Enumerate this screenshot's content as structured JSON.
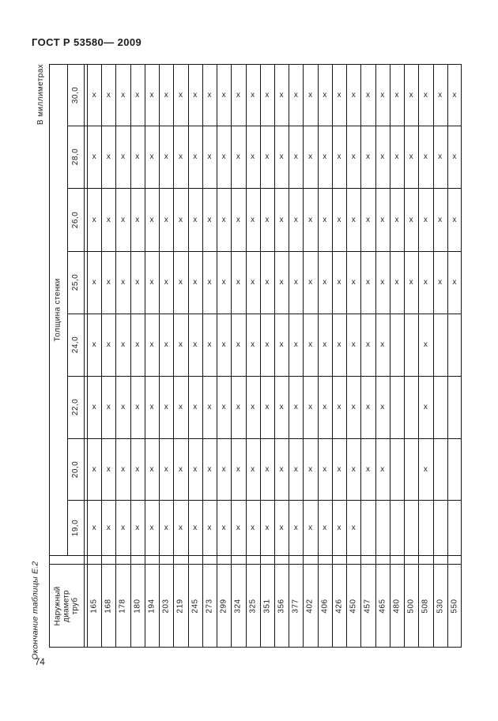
{
  "page": {
    "header": "ГОСТ Р 53580— 2009",
    "units_note": "В миллиметрах",
    "side_caption": "Окончание таблицы Е.2",
    "page_number": "74"
  },
  "table": {
    "corner_header_lines": [
      "Наружный",
      "диаметр",
      "труб"
    ],
    "thickness_header": "Толщина стенки",
    "mark": "х",
    "thicknesses_top_to_bottom": [
      "30,0",
      "28,0",
      "26,0",
      "25,0",
      "24,0",
      "22,0",
      "20,0",
      "19,0"
    ],
    "diameters_left_to_right": [
      "165",
      "168",
      "178",
      "180",
      "194",
      "203",
      "219",
      "245",
      "273",
      "299",
      "324",
      "325",
      "351",
      "356",
      "377",
      "402",
      "406",
      "426",
      "450",
      "457",
      "465",
      "480",
      "500",
      "508",
      "530",
      "550"
    ],
    "availability": [
      [
        1,
        1,
        1,
        1,
        1,
        1,
        1,
        1,
        1,
        1,
        1,
        1,
        1,
        1,
        1,
        1,
        1,
        1,
        1,
        1,
        1,
        1,
        1,
        1,
        1,
        1
      ],
      [
        1,
        1,
        1,
        1,
        1,
        1,
        1,
        1,
        1,
        1,
        1,
        1,
        1,
        1,
        1,
        1,
        1,
        1,
        1,
        1,
        1,
        1,
        1,
        1,
        1,
        1
      ],
      [
        1,
        1,
        1,
        1,
        1,
        1,
        1,
        1,
        1,
        1,
        1,
        1,
        1,
        1,
        1,
        1,
        1,
        1,
        1,
        1,
        1,
        1,
        1,
        1,
        1,
        1
      ],
      [
        1,
        1,
        1,
        1,
        1,
        1,
        1,
        1,
        1,
        1,
        1,
        1,
        1,
        1,
        1,
        1,
        1,
        1,
        1,
        1,
        1,
        1,
        1,
        1,
        1,
        1
      ],
      [
        1,
        1,
        1,
        1,
        1,
        1,
        1,
        1,
        1,
        1,
        1,
        1,
        1,
        1,
        1,
        1,
        1,
        1,
        1,
        1,
        1,
        0,
        0,
        1,
        0,
        0
      ],
      [
        1,
        1,
        1,
        1,
        1,
        1,
        1,
        1,
        1,
        1,
        1,
        1,
        1,
        1,
        1,
        1,
        1,
        1,
        1,
        1,
        1,
        0,
        0,
        1,
        0,
        0
      ],
      [
        1,
        1,
        1,
        1,
        1,
        1,
        1,
        1,
        1,
        1,
        1,
        1,
        1,
        1,
        1,
        1,
        1,
        1,
        1,
        1,
        1,
        0,
        0,
        1,
        0,
        0
      ],
      [
        1,
        1,
        1,
        1,
        1,
        1,
        1,
        1,
        1,
        1,
        1,
        1,
        1,
        1,
        1,
        1,
        1,
        1,
        1,
        0,
        0,
        0,
        0,
        0,
        0,
        0
      ]
    ]
  }
}
